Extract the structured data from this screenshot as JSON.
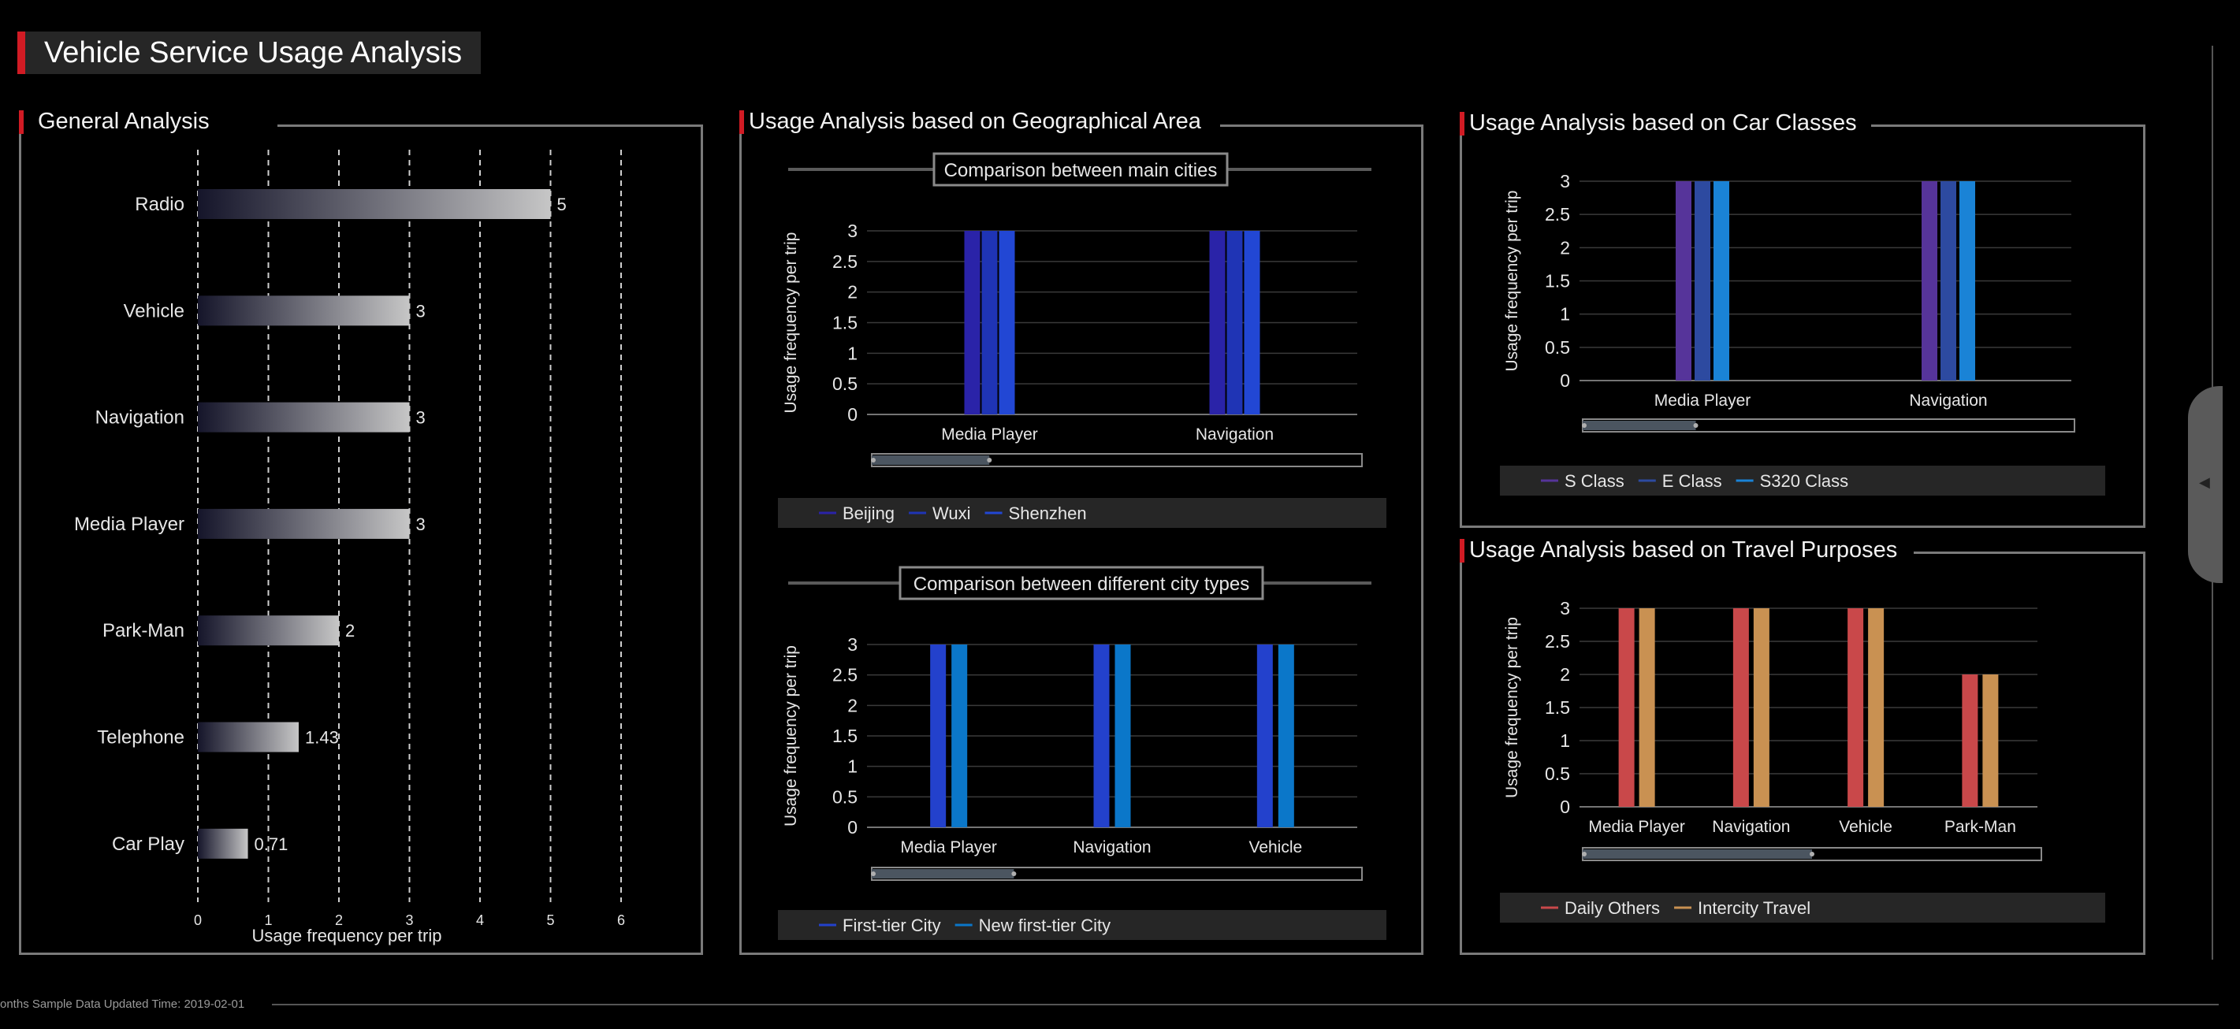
{
  "header": {
    "title": "Vehicle Service Usage Analysis"
  },
  "sections": {
    "general": "General Analysis",
    "geo": "Usage Analysis based on Geographical Area",
    "car": "Usage Analysis based on Car Classes",
    "travel": "Usage Analysis based on Travel Purposes"
  },
  "footer": {
    "text": "onths Sample Data    Updated Time: 2019-02-01"
  },
  "side_tab": {
    "icon": "triangle-left-icon"
  },
  "chart_data": [
    {
      "id": "general",
      "type": "bar",
      "orientation": "horizontal",
      "categories": [
        "Radio",
        "Vehicle",
        "Navigation",
        "Media Player",
        "Park-Man",
        "Telephone",
        "Car Play"
      ],
      "values": [
        5,
        3,
        3,
        3,
        2,
        1.43,
        0.71
      ],
      "value_labels": [
        "5",
        "3",
        "3",
        "3",
        "2",
        "1.43",
        "0.71"
      ],
      "xlabel": "Usage frequency per trip",
      "xlim": [
        0,
        6
      ],
      "xticks": [
        "0",
        "1",
        "2",
        "3",
        "4",
        "5",
        "6"
      ],
      "grid": "vertical-dashed",
      "colors": {
        "bar_start": "#15152a",
        "bar_end": "#c6c6c6",
        "grid": "#cfcfcf"
      }
    },
    {
      "id": "main-cities",
      "type": "bar",
      "title": "Comparison between main cities",
      "categories": [
        "Media Player",
        "Navigation"
      ],
      "series": [
        {
          "name": "Beijing",
          "values": [
            3,
            3
          ],
          "color": "#2a23a8"
        },
        {
          "name": "Wuxi",
          "values": [
            3,
            3
          ],
          "color": "#1f34b5"
        },
        {
          "name": "Shenzhen",
          "values": [
            3,
            3
          ],
          "color": "#2247d4"
        }
      ],
      "ylabel": "Usage frequency per trip",
      "ylim": [
        0,
        3
      ],
      "yticks": [
        "0",
        "0.5",
        "1",
        "1.5",
        "2",
        "2.5",
        "3"
      ],
      "legend": "bottom",
      "zoom_slider": {
        "start": 0,
        "end": 0.24
      }
    },
    {
      "id": "city-types",
      "type": "bar",
      "title": "Comparison between different city types",
      "categories": [
        "Media Player",
        "Navigation",
        "Vehicle"
      ],
      "series": [
        {
          "name": "First-tier City",
          "values": [
            3,
            3,
            3
          ],
          "color": "#2341cc"
        },
        {
          "name": "New first-tier City",
          "values": [
            3,
            3,
            3
          ],
          "color": "#0b77c9"
        }
      ],
      "ylabel": "Usage frequency per trip",
      "ylim": [
        0,
        3
      ],
      "yticks": [
        "0",
        "0.5",
        "1",
        "1.5",
        "2",
        "2.5",
        "3"
      ],
      "legend": "bottom",
      "zoom_slider": {
        "start": 0,
        "end": 0.29
      }
    },
    {
      "id": "car-classes",
      "type": "bar",
      "categories": [
        "Media Player",
        "Navigation"
      ],
      "series": [
        {
          "name": "S Class",
          "values": [
            3,
            3
          ],
          "color": "#56349a"
        },
        {
          "name": "E Class",
          "values": [
            3,
            3
          ],
          "color": "#2d4aa0"
        },
        {
          "name": "S320 Class",
          "values": [
            3,
            3
          ],
          "color": "#1a83d6"
        }
      ],
      "ylabel": "Usage frequency per trip",
      "ylim": [
        0,
        3
      ],
      "yticks": [
        "0",
        "0.5",
        "1",
        "1.5",
        "2",
        "2.5",
        "3"
      ],
      "legend": "bottom",
      "zoom_slider": {
        "start": 0,
        "end": 0.23
      }
    },
    {
      "id": "travel-purposes",
      "type": "bar",
      "categories": [
        "Media Player",
        "Navigation",
        "Vehicle",
        "Park-Man"
      ],
      "series": [
        {
          "name": "Daily Others",
          "values": [
            3,
            3,
            3,
            2
          ],
          "color": "#c9484a"
        },
        {
          "name": "Intercity Travel",
          "values": [
            3,
            3,
            3,
            2
          ],
          "color": "#c99152"
        }
      ],
      "ylabel": "Usage frequency per trip",
      "ylim": [
        0,
        3
      ],
      "yticks": [
        "0",
        "0.5",
        "1",
        "1.5",
        "2",
        "2.5",
        "3"
      ],
      "legend": "bottom",
      "zoom_slider": {
        "start": 0,
        "end": 0.5
      }
    }
  ]
}
